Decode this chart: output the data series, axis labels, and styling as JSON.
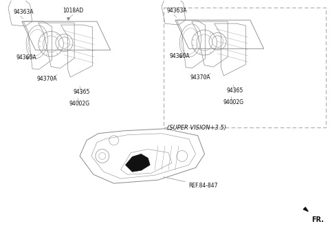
{
  "bg_color": "#ffffff",
  "line_color": "#888888",
  "dark_color": "#111111",
  "text_color": "#111111",
  "fr_label": "FR.",
  "ref_label": "REF.84-847",
  "super_vision_label": "(SUPER VISION+3.5)",
  "left_labels": {
    "top": "94002G",
    "mid_top": "94365",
    "mid": "94370A",
    "left_top": "94360A",
    "bottom_left": "94363A",
    "bottom_mid": "1018AD"
  },
  "right_labels": {
    "top": "94002G",
    "mid_top": "94365",
    "mid": "94370A",
    "left_top": "94360A",
    "bottom_left": "94363A"
  }
}
